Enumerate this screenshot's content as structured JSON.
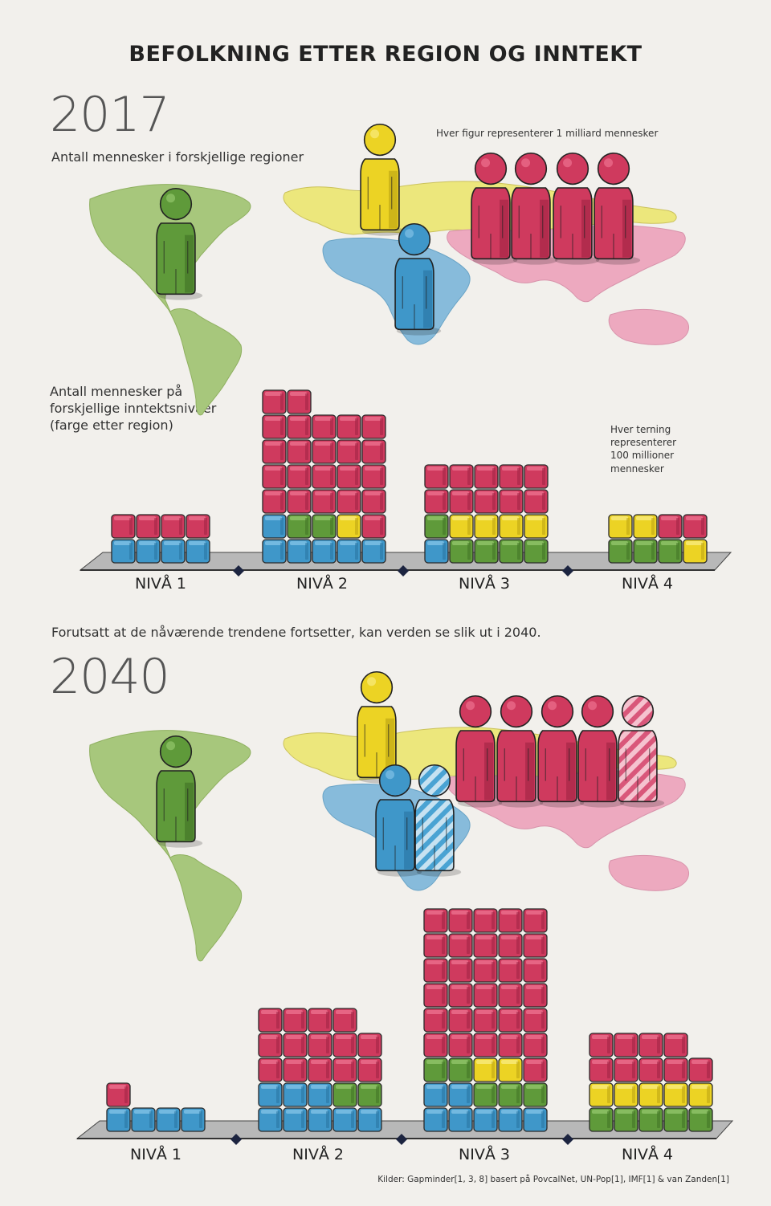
{
  "title": "BEFOLKNING ETTER REGION OG INNTEKT",
  "section_2017": {
    "year": "2017",
    "regions_caption": "Antall mennesker i forskjellige regioner",
    "figure_note": "Hver figur representerer 1 milliard mennesker",
    "income_caption": [
      "Antall mennesker på",
      "forskjellige inntektsnivåer",
      "(farge etter region)"
    ],
    "cube_note": [
      "Hver terning",
      "representerer",
      "100 millioner",
      "mennesker"
    ]
  },
  "transition_text": "Forutsatt at de nåværende trendene fortsetter, kan verden se slik ut i 2040.",
  "section_2040": {
    "year": "2040"
  },
  "level_labels": [
    "NIVÅ 1",
    "NIVÅ 2",
    "NIVÅ 3",
    "NIVÅ 4"
  ],
  "source": "Kilder: Gapminder[1, 3, 8] basert på PovcalNet, UN-Pop[1], IMF[1] & van Zanden[1]",
  "colors": {
    "americas": "#5f9a3a",
    "europe": "#ecd324",
    "africa": "#3f97c9",
    "asia": "#cf3a5e",
    "map_americas": "#a7c77c",
    "map_europe": "#ece77c",
    "map_africa": "#87bbdb",
    "map_asia": "#eda9bf"
  },
  "chart_data": [
    {
      "type": "pictograph",
      "title": "Antall mennesker i forskjellige regioner",
      "year": "2017",
      "unit": "1 milliard mennesker per figur",
      "series": [
        {
          "name": "americas",
          "values": [
            1
          ]
        },
        {
          "name": "europe",
          "values": [
            1
          ]
        },
        {
          "name": "africa",
          "values": [
            1
          ]
        },
        {
          "name": "asia",
          "values": [
            4
          ]
        }
      ]
    },
    {
      "type": "bar",
      "stacked": true,
      "year": "2017",
      "title": "Antall mennesker på forskjellige inntektsnivåer (farge etter region)",
      "unit": "100 millioner mennesker per terning",
      "categories": [
        "NIVÅ 1",
        "NIVÅ 2",
        "NIVÅ 3",
        "NIVÅ 4"
      ],
      "series": [
        {
          "name": "africa",
          "values": [
            4,
            6,
            1,
            0
          ]
        },
        {
          "name": "americas",
          "values": [
            0,
            2,
            5,
            3
          ]
        },
        {
          "name": "europe",
          "values": [
            0,
            1,
            4,
            3
          ]
        },
        {
          "name": "asia",
          "values": [
            4,
            23,
            10,
            2
          ]
        }
      ]
    },
    {
      "type": "pictograph",
      "title": "Antall mennesker i forskjellige regioner",
      "year": "2040",
      "unit": "1 milliard mennesker per figur",
      "series": [
        {
          "name": "americas",
          "values": [
            1
          ]
        },
        {
          "name": "europe",
          "values": [
            1
          ]
        },
        {
          "name": "africa",
          "values": [
            2
          ]
        },
        {
          "name": "asia",
          "values": [
            5
          ]
        }
      ]
    },
    {
      "type": "bar",
      "stacked": true,
      "year": "2040",
      "categories": [
        "NIVÅ 1",
        "NIVÅ 2",
        "NIVÅ 3",
        "NIVÅ 4"
      ],
      "series": [
        {
          "name": "africa",
          "values": [
            4,
            8,
            7,
            0
          ]
        },
        {
          "name": "americas",
          "values": [
            0,
            2,
            5,
            5
          ]
        },
        {
          "name": "europe",
          "values": [
            0,
            0,
            2,
            5
          ]
        },
        {
          "name": "asia",
          "values": [
            1,
            14,
            31,
            9
          ]
        }
      ]
    }
  ]
}
